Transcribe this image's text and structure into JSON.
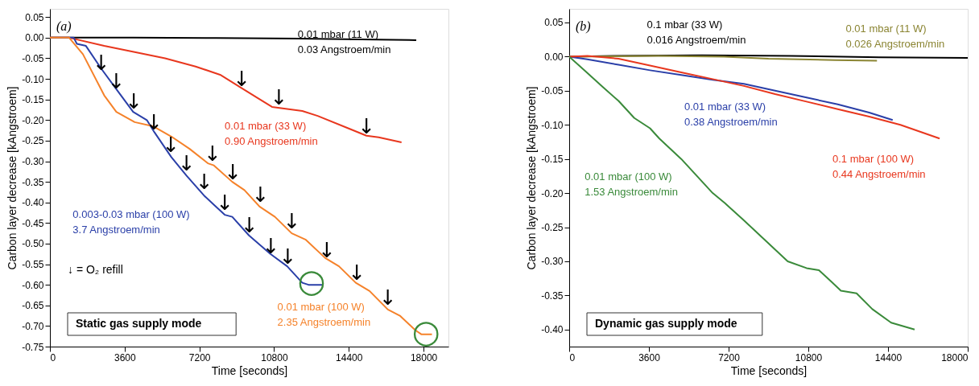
{
  "chart_data": [
    {
      "type": "line",
      "xlabel": "Time [seconds]",
      "ylabel": "Carbon layer decrease [kAngstroem]",
      "xlim": [
        0,
        19200
      ],
      "xticks": [
        0,
        3600,
        7200,
        10800,
        14400,
        18000
      ],
      "ylim": [
        -0.75,
        0.07
      ],
      "yticks": [
        {
          "value": 0.05,
          "label": "0.05"
        },
        {
          "value": 0,
          "label": "0.00"
        },
        {
          "value": -0.05,
          "label": "-0.05"
        },
        {
          "value": -0.1,
          "label": "-0.10"
        },
        {
          "value": -0.15,
          "label": "-0.15"
        },
        {
          "value": -0.2,
          "label": "-0.20"
        },
        {
          "value": -0.25,
          "label": "-0.25"
        },
        {
          "value": -0.3,
          "label": "-0.30"
        },
        {
          "value": -0.35,
          "label": "-0.35"
        },
        {
          "value": -0.4,
          "label": "-0.40"
        },
        {
          "value": -0.45,
          "label": "-0.45"
        },
        {
          "value": -0.5,
          "label": "-0.50"
        },
        {
          "value": -0.55,
          "label": "-0.55"
        },
        {
          "value": -0.6,
          "label": "-0.60"
        },
        {
          "value": -0.65,
          "label": "-0.65"
        },
        {
          "value": -0.7,
          "label": "-0.70"
        },
        {
          "value": -0.75,
          "label": "-0.75"
        }
      ],
      "grid": false,
      "line_style": "solid",
      "marker": "none",
      "series": [
        {
          "name": "0.01 mbar (11 W)\n0.03 Angstroem/min",
          "color": "#000000",
          "x": [
            0,
            4000,
            8000,
            12000,
            15000,
            17650
          ],
          "values": [
            0,
            0,
            -0.001,
            -0.002,
            -0.004,
            -0.006
          ]
        },
        {
          "name": "0.01 mbar (33 W)\n0.90 Angstroem/min",
          "color": "#e8371e",
          "x": [
            0,
            925,
            2615,
            4085,
            5550,
            7020,
            8200,
            9225,
            9960,
            10700,
            12160,
            12900,
            14370,
            15250,
            15840,
            16940
          ],
          "values": [
            0,
            0,
            -0.02,
            -0.035,
            -0.05,
            -0.07,
            -0.09,
            -0.122,
            -0.145,
            -0.168,
            -0.178,
            -0.19,
            -0.22,
            -0.238,
            -0.242,
            -0.254
          ]
        },
        {
          "name": "0.003-0.03 mbar (100 W)\n3.7 Angstroem/min",
          "color": "#2a3fa8",
          "x": [
            0,
            925,
            1145,
            1300,
            1735,
            2470,
            3200,
            4010,
            4670,
            5040,
            5850,
            6580,
            7460,
            8420,
            8785,
            9590,
            10620,
            11430,
            12160,
            12460,
            13120
          ],
          "values": [
            0,
            0,
            0,
            -0.015,
            -0.02,
            -0.075,
            -0.125,
            -0.18,
            -0.2,
            -0.23,
            -0.29,
            -0.335,
            -0.385,
            -0.43,
            -0.435,
            -0.48,
            -0.525,
            -0.555,
            -0.595,
            -0.6,
            -0.6
          ]
        },
        {
          "name": "0.01 mbar (100 W)\n2.35 Angstroem/min",
          "color": "#f5822a",
          "x": [
            0,
            925,
            1590,
            2615,
            3200,
            4085,
            4965,
            5850,
            6730,
            7610,
            7900,
            8785,
            9370,
            10100,
            10840,
            11650,
            12310,
            13265,
            13925,
            14735,
            15400,
            16280,
            16860,
            17600,
            17890,
            18405
          ],
          "values": [
            0,
            0,
            -0.04,
            -0.14,
            -0.18,
            -0.205,
            -0.215,
            -0.24,
            -0.27,
            -0.305,
            -0.31,
            -0.35,
            -0.37,
            -0.41,
            -0.435,
            -0.475,
            -0.49,
            -0.535,
            -0.555,
            -0.595,
            -0.615,
            -0.66,
            -0.675,
            -0.71,
            -0.72,
            -0.72
          ]
        }
      ],
      "annotations": [
        "(a)",
        "Static gas supply mode",
        "↓ = O₂ refill",
        {
          "text": "↓",
          "x": 2470,
          "y": -0.08
        },
        {
          "text": "↓",
          "x": 3200,
          "y": -0.125
        },
        {
          "text": "↓",
          "x": 4040,
          "y": -0.175
        },
        {
          "text": "↓",
          "x": 5010,
          "y": -0.225
        },
        {
          "text": "↓",
          "x": 5820,
          "y": -0.28
        },
        {
          "text": "↓",
          "x": 6580,
          "y": -0.325
        },
        {
          "text": "↓",
          "x": 7430,
          "y": -0.37
        },
        {
          "text": "↓",
          "x": 8420,
          "y": -0.42
        },
        {
          "text": "↓",
          "x": 9610,
          "y": -0.475
        },
        {
          "text": "↓",
          "x": 10640,
          "y": -0.525
        },
        {
          "text": "↓",
          "x": 11460,
          "y": -0.55
        },
        {
          "text": "↓",
          "x": 7830,
          "y": -0.3
        },
        {
          "text": "↓",
          "x": 8810,
          "y": -0.345
        },
        {
          "text": "↓",
          "x": 10140,
          "y": -0.4
        },
        {
          "text": "↓",
          "x": 11650,
          "y": -0.465
        },
        {
          "text": "↓",
          "x": 13340,
          "y": -0.535
        },
        {
          "text": "↓",
          "x": 14780,
          "y": -0.59
        },
        {
          "text": "↓",
          "x": 16280,
          "y": -0.65
        },
        {
          "text": "↓",
          "x": 9240,
          "y": -0.12
        },
        {
          "text": "↓",
          "x": 11030,
          "y": -0.165
        },
        {
          "text": "↓",
          "x": 15250,
          "y": -0.235
        },
        {
          "text": "○",
          "x": 12600,
          "y": -0.593
        },
        {
          "text": "○",
          "x": 18120,
          "y": -0.716
        }
      ]
    },
    {
      "type": "line",
      "xlabel": "Time [seconds]",
      "ylabel": "Carbon layer decrease [kAngstroem]",
      "xlim": [
        0,
        18000
      ],
      "xticks": [
        0,
        3600,
        7200,
        10800,
        14400,
        18000
      ],
      "ylim": [
        -0.425,
        0.07
      ],
      "yticks": [
        {
          "value": 0.05,
          "label": "0.05"
        },
        {
          "value": 0,
          "label": "0.00"
        },
        {
          "value": -0.05,
          "label": "-0.05"
        },
        {
          "value": -0.1,
          "label": "-0.10"
        },
        {
          "value": -0.15,
          "label": "-0.15"
        },
        {
          "value": -0.2,
          "label": "-0.20"
        },
        {
          "value": -0.25,
          "label": "-0.25"
        },
        {
          "value": -0.3,
          "label": "-0.30"
        },
        {
          "value": -0.35,
          "label": "-0.35"
        },
        {
          "value": -0.4,
          "label": "-0.40"
        }
      ],
      "grid": false,
      "line_style": "solid",
      "marker": "none",
      "series": [
        {
          "name": "0.1 mbar (33 W)\n0.016 Angstroem/min",
          "color": "#000000",
          "x": [
            0,
            2000,
            6000,
            10000,
            14000,
            18000
          ],
          "values": [
            0,
            0.001,
            0.002,
            0.001,
            -0.001,
            -0.002
          ]
        },
        {
          "name": "0.01 mbar (11 W)\n0.026 Angstroem/min",
          "color": "#8b8533",
          "x": [
            0,
            4000,
            7000,
            9000,
            12000,
            13900
          ],
          "values": [
            0,
            0.001,
            0,
            -0.003,
            -0.005,
            -0.006
          ]
        },
        {
          "name": "0.01 mbar (33 W)\n0.38 Angstroem/min",
          "color": "#2a3fa8",
          "x": [
            0,
            820,
            2230,
            3650,
            5060,
            6480,
            7890,
            9300,
            10720,
            12130,
            13550,
            14610
          ],
          "values": [
            0,
            -0.004,
            -0.012,
            -0.02,
            -0.027,
            -0.034,
            -0.04,
            -0.05,
            -0.06,
            -0.07,
            -0.082,
            -0.093
          ]
        },
        {
          "name": "0.1 mbar (100 W)\n0.44 Angstroem/min",
          "color": "#e8371e",
          "x": [
            0,
            820,
            2230,
            3650,
            5060,
            6480,
            7890,
            9300,
            10720,
            12130,
            13550,
            14960,
            16730
          ],
          "values": [
            0,
            0.001,
            -0.003,
            -0.013,
            -0.023,
            -0.033,
            -0.043,
            -0.055,
            -0.066,
            -0.077,
            -0.088,
            -0.1,
            -0.12
          ]
        },
        {
          "name": "0.01 mbar (100 W)\n1.53 Angstroem/min",
          "color": "#3a8a3a",
          "x": [
            0,
            680,
            1530,
            2230,
            2940,
            3650,
            4070,
            5060,
            5770,
            6480,
            7040,
            7890,
            8880,
            9870,
            10720,
            11280,
            11850,
            12270,
            12980,
            13690,
            14540,
            15600
          ],
          "values": [
            0,
            -0.02,
            -0.045,
            -0.065,
            -0.09,
            -0.105,
            -0.12,
            -0.15,
            -0.175,
            -0.2,
            -0.215,
            -0.24,
            -0.27,
            -0.3,
            -0.31,
            -0.313,
            -0.33,
            -0.343,
            -0.347,
            -0.37,
            -0.39,
            -0.4
          ]
        }
      ],
      "annotations": [
        "(b)",
        "Dynamic gas supply mode"
      ]
    }
  ]
}
